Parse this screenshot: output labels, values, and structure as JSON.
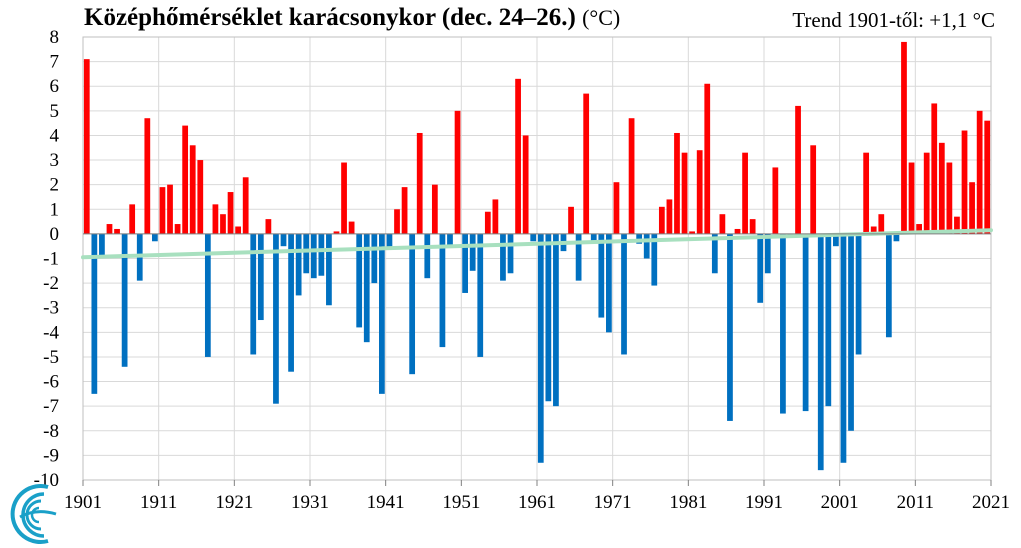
{
  "title": "Középhőmérséklet karácsonykor (dec. 24–26.)",
  "title_unit": "(°C)",
  "trend_label": "Trend 1901-től: +1,1 °C",
  "colors": {
    "positive": "#ff0000",
    "negative": "#0070c0",
    "trend": "#a8e0bf",
    "grid": "#d9d9d9"
  },
  "chart_data": {
    "type": "bar",
    "x": [
      1901,
      1902,
      1903,
      1904,
      1905,
      1906,
      1907,
      1908,
      1909,
      1910,
      1911,
      1912,
      1913,
      1914,
      1915,
      1916,
      1917,
      1918,
      1919,
      1920,
      1921,
      1922,
      1923,
      1924,
      1925,
      1926,
      1927,
      1928,
      1929,
      1930,
      1931,
      1932,
      1933,
      1934,
      1935,
      1936,
      1937,
      1938,
      1939,
      1940,
      1941,
      1942,
      1943,
      1944,
      1945,
      1946,
      1947,
      1948,
      1949,
      1950,
      1951,
      1952,
      1953,
      1954,
      1955,
      1956,
      1957,
      1958,
      1959,
      1960,
      1961,
      1962,
      1963,
      1964,
      1965,
      1966,
      1967,
      1968,
      1969,
      1970,
      1971,
      1972,
      1973,
      1974,
      1975,
      1976,
      1977,
      1978,
      1979,
      1980,
      1981,
      1982,
      1983,
      1984,
      1985,
      1986,
      1987,
      1988,
      1989,
      1990,
      1991,
      1992,
      1993,
      1994,
      1995,
      1996,
      1997,
      1998,
      1999,
      2000,
      2001,
      2002,
      2003,
      2004,
      2005,
      2006,
      2007,
      2008,
      2009,
      2010,
      2011,
      2012,
      2013,
      2014,
      2015,
      2016,
      2017,
      2018,
      2019,
      2020
    ],
    "values": [
      7.1,
      -6.5,
      -0.9,
      0.4,
      0.2,
      -5.4,
      1.2,
      -1.9,
      4.7,
      -0.3,
      1.9,
      2.0,
      0.4,
      4.4,
      3.6,
      3.0,
      -5.0,
      1.2,
      0.8,
      1.7,
      0.3,
      2.3,
      -4.9,
      -3.5,
      0.6,
      -6.9,
      -0.5,
      -5.6,
      -2.5,
      -1.6,
      -1.8,
      -1.7,
      -2.9,
      0.1,
      2.9,
      0.5,
      -3.8,
      -4.4,
      -2.0,
      -6.5,
      -0.6,
      1.0,
      1.9,
      -5.7,
      4.1,
      -1.8,
      2.0,
      -4.6,
      -0.5,
      5.0,
      -2.4,
      -1.5,
      -5.0,
      0.9,
      1.4,
      -1.9,
      -1.6,
      6.3,
      4.0,
      -0.3,
      -9.3,
      -6.8,
      -7.0,
      -0.7,
      1.1,
      -1.9,
      5.7,
      -0.3,
      -3.4,
      -4.0,
      2.1,
      -4.9,
      4.7,
      -0.4,
      -1.0,
      -2.1,
      1.1,
      1.4,
      4.1,
      3.3,
      0.1,
      3.4,
      6.1,
      -1.6,
      0.8,
      -7.6,
      0.2,
      3.3,
      0.6,
      -2.8,
      -1.6,
      2.7,
      -7.3,
      -0.1,
      5.2,
      -7.2,
      3.6,
      -9.6,
      -7.0,
      -0.5,
      -9.3,
      -8.0,
      -4.9,
      3.3,
      0.3,
      0.8,
      -4.2,
      -0.3,
      7.8,
      2.9,
      0.4,
      3.3,
      5.3,
      3.7,
      2.9,
      0.7,
      4.2,
      2.1,
      5.0,
      4.6
    ],
    "trend": {
      "start_year": 1901,
      "start_value": -0.95,
      "end_year": 2020,
      "end_value": 0.15
    },
    "y_ticks": [
      8,
      7,
      6,
      5,
      4,
      3,
      2,
      1,
      0,
      -1,
      -2,
      -3,
      -4,
      -5,
      -6,
      -7,
      -8,
      -9,
      -10
    ],
    "x_ticks": [
      1901,
      1911,
      1921,
      1931,
      1941,
      1951,
      1961,
      1971,
      1981,
      1991,
      2001,
      2011,
      2021
    ],
    "ylim": [
      -10,
      8
    ],
    "xlim": [
      1901,
      2021
    ],
    "grid": true,
    "xlabel": "",
    "ylabel": ""
  }
}
